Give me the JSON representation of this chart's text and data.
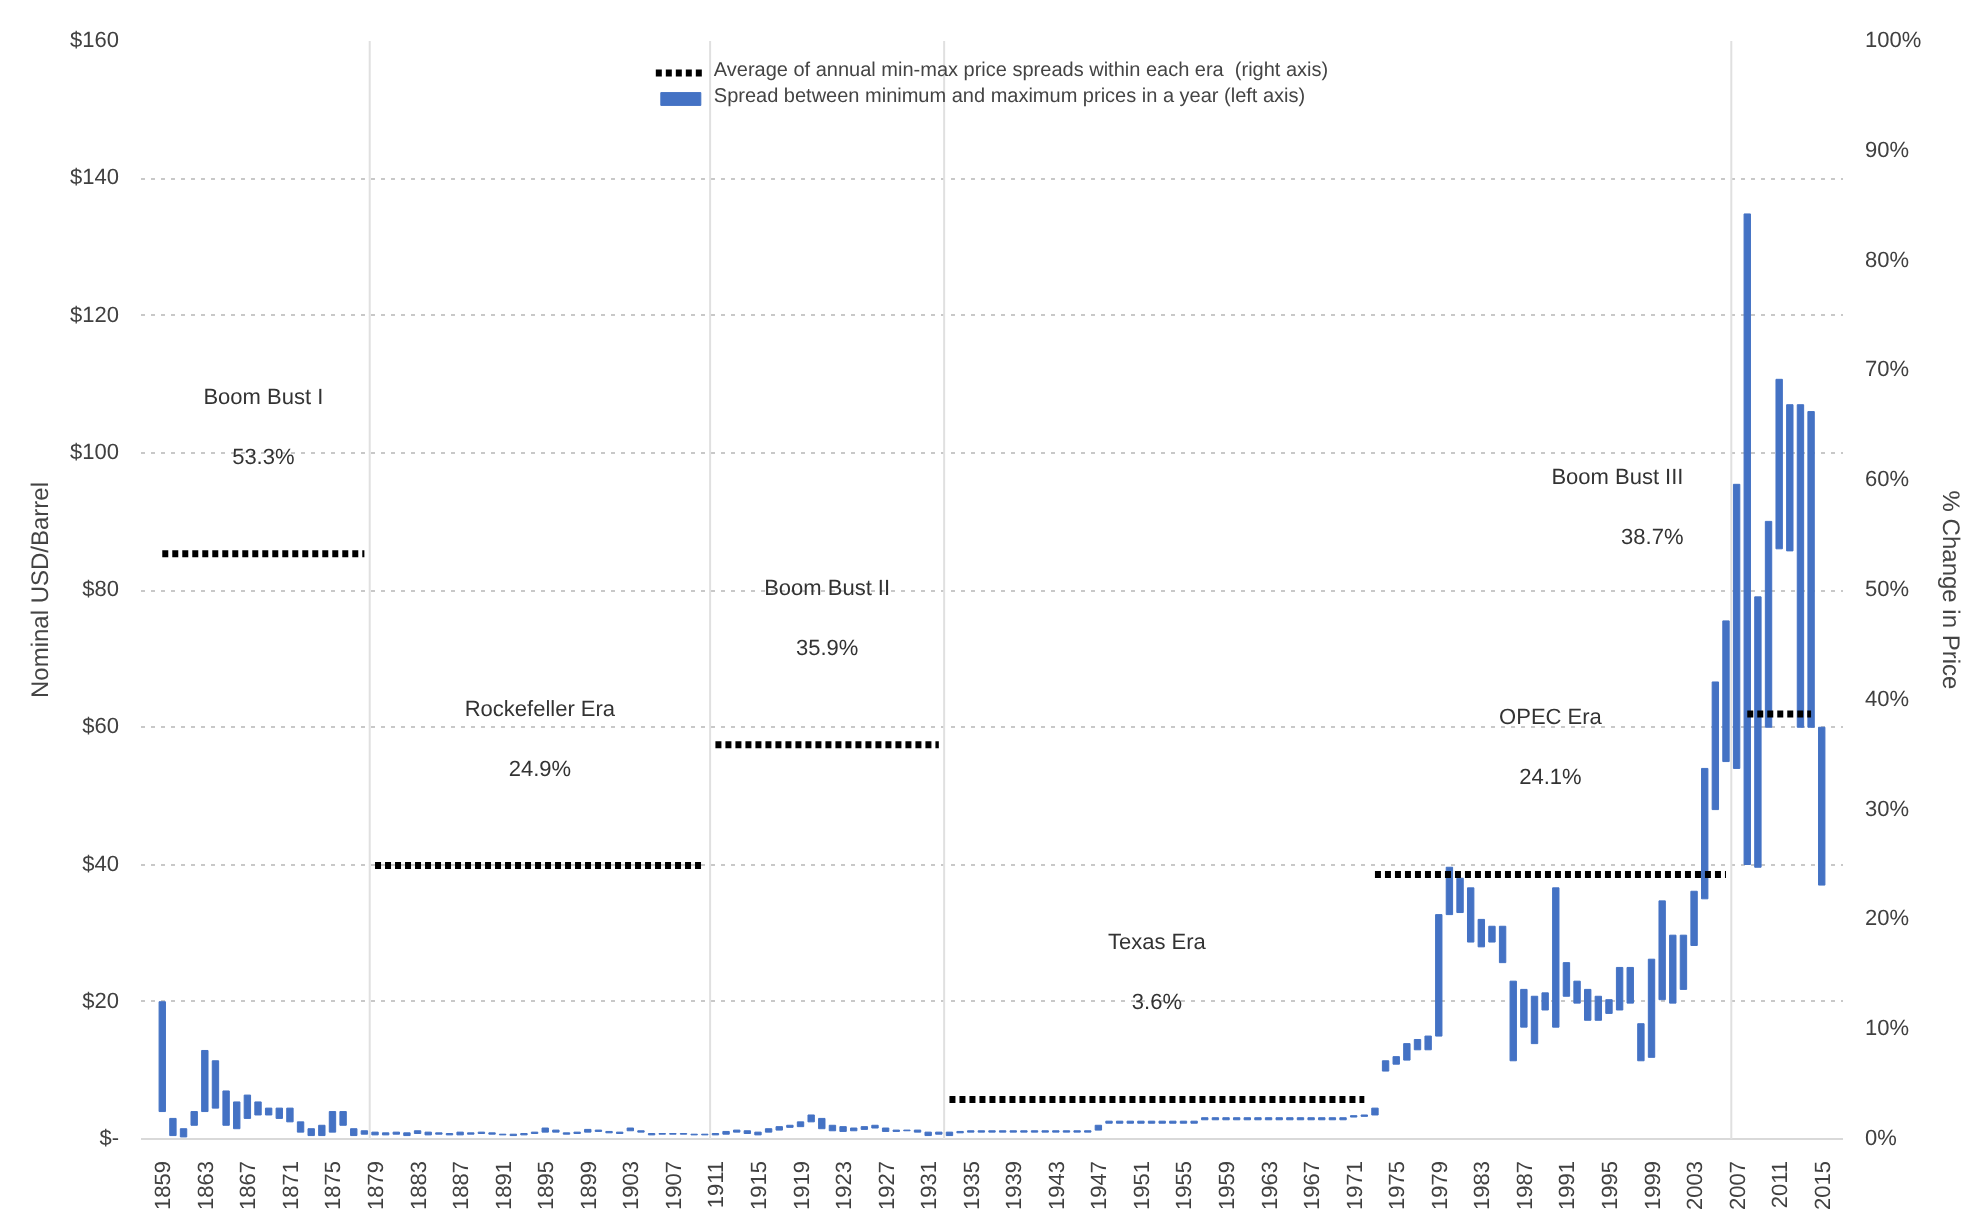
{
  "chart_data": {
    "type": "bar",
    "ylabel": "Nominal USD/Barrel",
    "y2label": "% Change in Price",
    "x": [
      1859,
      1860,
      1861,
      1862,
      1863,
      1864,
      1865,
      1866,
      1867,
      1868,
      1869,
      1870,
      1871,
      1872,
      1873,
      1874,
      1875,
      1876,
      1877,
      1878,
      1879,
      1880,
      1881,
      1882,
      1883,
      1884,
      1885,
      1886,
      1887,
      1888,
      1889,
      1890,
      1891,
      1892,
      1893,
      1894,
      1895,
      1896,
      1897,
      1898,
      1899,
      1900,
      1901,
      1902,
      1903,
      1904,
      1905,
      1906,
      1907,
      1908,
      1909,
      1910,
      1911,
      1912,
      1913,
      1914,
      1915,
      1916,
      1917,
      1918,
      1919,
      1920,
      1921,
      1922,
      1923,
      1924,
      1925,
      1926,
      1927,
      1928,
      1929,
      1930,
      1931,
      1932,
      1933,
      1934,
      1935,
      1936,
      1937,
      1938,
      1939,
      1940,
      1941,
      1942,
      1943,
      1944,
      1945,
      1946,
      1947,
      1948,
      1949,
      1950,
      1951,
      1952,
      1953,
      1954,
      1955,
      1956,
      1957,
      1958,
      1959,
      1960,
      1961,
      1962,
      1963,
      1964,
      1965,
      1966,
      1967,
      1968,
      1969,
      1970,
      1971,
      1972,
      1973,
      1974,
      1975,
      1976,
      1977,
      1978,
      1979,
      1980,
      1981,
      1982,
      1983,
      1984,
      1985,
      1986,
      1987,
      1988,
      1989,
      1990,
      1991,
      1992,
      1993,
      1994,
      1995,
      1996,
      1997,
      1998,
      1999,
      2000,
      2001,
      2002,
      2003,
      2004,
      2005,
      2006,
      2007,
      2008,
      2009,
      2010,
      2011,
      2012,
      2013,
      2014,
      2015
    ],
    "series": [
      {
        "type": "line",
        "axis": "y2",
        "name": "Average of annual min-max price spreads within each era  (right axis)",
        "color": "#000000",
        "line_style": "dotted",
        "x": [
          1859,
          1878,
          null,
          1879,
          1910,
          null,
          1911,
          1932,
          null,
          1933,
          1972,
          null,
          1973,
          2006,
          null,
          2008,
          2014
        ],
        "values": [
          53.3,
          53.3,
          null,
          24.9,
          24.9,
          null,
          35.9,
          35.9,
          null,
          3.6,
          3.6,
          null,
          24.1,
          24.1,
          null,
          38.7,
          38.7
        ]
      },
      {
        "name": "Spread between minimum and maximum prices in a year (left axis)",
        "color": "#4472c4",
        "base": [
          4,
          0.5,
          0.3,
          2,
          4,
          4.5,
          2,
          1.5,
          3,
          3.5,
          3.5,
          3,
          2.5,
          1,
          0.5,
          0.5,
          1,
          2,
          0.5,
          0.7,
          0.6,
          0.6,
          0.7,
          0.5,
          0.8,
          0.6,
          0.7,
          0.6,
          0.6,
          0.7,
          0.8,
          0.7,
          0.6,
          0.5,
          0.6,
          0.8,
          1.0,
          1.0,
          0.7,
          0.8,
          1.0,
          1.1,
          0.9,
          0.8,
          1.2,
          1.0,
          0.6,
          0.7,
          0.7,
          0.7,
          0.6,
          0.6,
          0.6,
          0.7,
          1.0,
          0.8,
          0.6,
          1.0,
          1.3,
          1.7,
          1.8,
          2.5,
          1.5,
          1.2,
          1.1,
          1.2,
          1.4,
          1.6,
          1.1,
          1.1,
          1.2,
          1.0,
          0.5,
          0.7,
          0.5,
          0.9,
          1.0,
          1.0,
          1.0,
          1.0,
          1.0,
          1.0,
          1.0,
          1.0,
          1.0,
          1.0,
          1.0,
          1.0,
          1.3,
          2.3,
          2.3,
          2.3,
          2.3,
          2.3,
          2.3,
          2.3,
          2.3,
          2.3,
          2.8,
          2.8,
          2.8,
          2.8,
          2.8,
          2.8,
          2.8,
          2.8,
          2.8,
          2.8,
          2.8,
          2.8,
          2.8,
          2.8,
          3.2,
          3.3,
          3.5,
          9.9,
          10.9,
          11.5,
          13,
          13,
          15,
          32.7,
          33,
          28.7,
          28,
          28.7,
          25.7,
          11.4,
          16.3,
          13.9,
          18.8,
          16.3,
          20.8,
          19.8,
          17.3,
          17.3,
          18.3,
          18.8,
          19.8,
          11.4,
          11.9,
          20.3,
          19.8,
          21.8,
          28.2,
          35,
          48,
          55,
          54,
          40,
          39.6,
          60,
          86,
          85.7,
          60,
          60,
          37
        ],
        "values": [
          16,
          2.5,
          1.2,
          2,
          8.9,
          6.9,
          5,
          3.9,
          3.4,
          1.9,
          1,
          1.5,
          2,
          1.5,
          1,
          1.5,
          3,
          2,
          1,
          0.5,
          0.4,
          0.3,
          0.3,
          0.4,
          0.4,
          0.4,
          0.2,
          0.2,
          0.4,
          0.2,
          0.2,
          0.2,
          0.1,
          0.2,
          0.2,
          0.2,
          0.6,
          0.3,
          0.2,
          0.2,
          0.4,
          0.2,
          0.2,
          0.2,
          0.4,
          0.2,
          0.2,
          0.1,
          0.1,
          0.1,
          0.1,
          0.1,
          0.2,
          0.4,
          0.3,
          0.4,
          0.4,
          0.5,
          0.5,
          0.3,
          0.7,
          1,
          1.5,
          0.8,
          0.7,
          0.4,
          0.4,
          0.4,
          0.5,
          0.2,
          0.1,
          0.3,
          0.5,
          0.3,
          0.5,
          0.2,
          0.2,
          0.2,
          0.2,
          0.2,
          0.2,
          0.2,
          0.2,
          0.2,
          0.2,
          0.2,
          0.2,
          0.2,
          0.7,
          0.3,
          0.3,
          0.3,
          0.3,
          0.3,
          0.3,
          0.3,
          0.3,
          0.3,
          0.3,
          0.3,
          0.3,
          0.3,
          0.3,
          0.3,
          0.3,
          0.3,
          0.3,
          0.3,
          0.3,
          0.3,
          0.3,
          0.3,
          0.2,
          0.2,
          1,
          1.5,
          1.1,
          2.4,
          1.5,
          2,
          17.7,
          6.9,
          5,
          7.9,
          4,
          2.3,
          5.3,
          11.6,
          5.5,
          6.9,
          2.5,
          20.3,
          4.9,
          3.2,
          4.5,
          3.5,
          2,
          6.2,
          5.2,
          5.4,
          14.3,
          14.4,
          9.9,
          7.9,
          7.9,
          19,
          18.6,
          20.5,
          41.4,
          94.8,
          39.4,
          30,
          24.7,
          21.3,
          47,
          46,
          23
        ]
      }
    ],
    "xlim": [
      1857,
      2017
    ],
    "xticks": [
      1859,
      1863,
      1867,
      1871,
      1875,
      1879,
      1883,
      1887,
      1891,
      1895,
      1899,
      1903,
      1907,
      1911,
      1915,
      1919,
      1923,
      1927,
      1931,
      1935,
      1939,
      1943,
      1947,
      1951,
      1955,
      1959,
      1963,
      1967,
      1971,
      1975,
      1979,
      1983,
      1987,
      1991,
      1995,
      1999,
      2003,
      2007,
      2011,
      2015
    ],
    "ylim": [
      0,
      160
    ],
    "yticks": [
      {
        "value": 0,
        "label": "$-"
      },
      {
        "value": 20,
        "label": "$20"
      },
      {
        "value": 40,
        "label": "$40"
      },
      {
        "value": 60,
        "label": "$60"
      },
      {
        "value": 80,
        "label": "$80"
      },
      {
        "value": 100,
        "label": "$100"
      },
      {
        "value": 120,
        "label": "$120"
      },
      {
        "value": 140,
        "label": "$140"
      },
      {
        "value": 160,
        "label": "$160"
      }
    ],
    "y2lim": [
      0,
      100
    ],
    "y2ticks": [
      {
        "value": 0,
        "label": "0%"
      },
      {
        "value": 10,
        "label": "10%"
      },
      {
        "value": 20,
        "label": "20%"
      },
      {
        "value": 30,
        "label": "30%"
      },
      {
        "value": 40,
        "label": "40%"
      },
      {
        "value": 50,
        "label": "50%"
      },
      {
        "value": 60,
        "label": "60%"
      },
      {
        "value": 70,
        "label": "70%"
      },
      {
        "value": 80,
        "label": "80%"
      },
      {
        "value": 90,
        "label": "90%"
      },
      {
        "value": 100,
        "label": "100%"
      }
    ],
    "ref_lines": [
      {
        "axis": "x",
        "value": 1878.5,
        "label": null,
        "color": "#e0e0e0"
      },
      {
        "axis": "x",
        "value": 1910.5,
        "label": null,
        "color": "#e0e0e0"
      },
      {
        "axis": "x",
        "value": 1932.5,
        "label": null,
        "color": "#e0e0e0"
      },
      {
        "axis": "x",
        "value": 2006.5,
        "label": null,
        "color": "#e0e0e0"
      }
    ],
    "annotations": [
      "Boom Bust I",
      "53.3%",
      "Rockefeller Era",
      "24.9%",
      "Boom Bust II",
      "35.9%",
      "Texas Era",
      "3.6%",
      "OPEC Era",
      "24.1%",
      "Boom Bust III",
      "38.7%"
    ],
    "grid": "y",
    "legend": "top"
  }
}
